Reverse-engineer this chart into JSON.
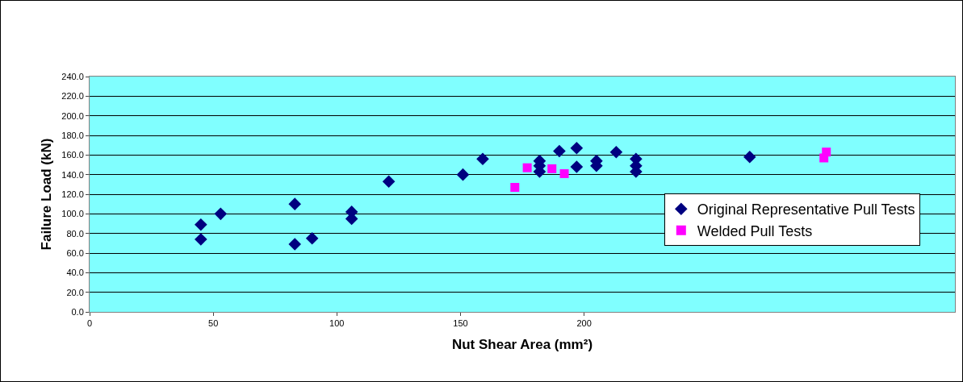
{
  "chart_data": {
    "type": "scatter",
    "xlabel": "Nut Shear Area (mm²)",
    "ylabel": "Failure Load (kN)",
    "xlim": [
      0,
      350
    ],
    "xticks": [
      0,
      50,
      100,
      150,
      200
    ],
    "ylim": [
      0,
      240
    ],
    "yticks": [
      {
        "value": 0,
        "label": "0.0"
      },
      {
        "value": 20,
        "label": "20.0"
      },
      {
        "value": 40,
        "label": "40.0"
      },
      {
        "value": 60,
        "label": "60.0"
      },
      {
        "value": 80,
        "label": "80.0"
      },
      {
        "value": 100,
        "label": "100.0"
      },
      {
        "value": 120,
        "label": "120.0"
      },
      {
        "value": 140,
        "label": "140.0"
      },
      {
        "value": 160,
        "label": "160.0"
      },
      {
        "value": 180,
        "label": "180.0"
      },
      {
        "value": 200,
        "label": "200.0"
      },
      {
        "value": 220,
        "label": "220.0"
      },
      {
        "value": 240,
        "label": "240.0"
      }
    ],
    "grid": "y",
    "legend": "bottom right",
    "series": [
      {
        "name": "Original Representative Pull Tests",
        "color": "#000080",
        "marker": "diamond",
        "x": [
          45,
          45,
          53,
          83,
          83,
          90,
          106,
          106,
          121,
          151,
          159,
          182,
          182,
          182,
          190,
          197,
          197,
          205,
          205,
          213,
          221,
          221,
          221,
          267
        ],
        "values": [
          89,
          74,
          100,
          110,
          69,
          75,
          102,
          95,
          133,
          140,
          156,
          154,
          149,
          143,
          164,
          167,
          148,
          154,
          149,
          163,
          156,
          149,
          143,
          158
        ]
      },
      {
        "name": "Welded Pull Tests",
        "color": "#ff00ff",
        "marker": "square",
        "x": [
          172,
          177,
          187,
          192,
          297,
          298
        ],
        "values": [
          127,
          147,
          146,
          141,
          157,
          163
        ]
      }
    ]
  }
}
